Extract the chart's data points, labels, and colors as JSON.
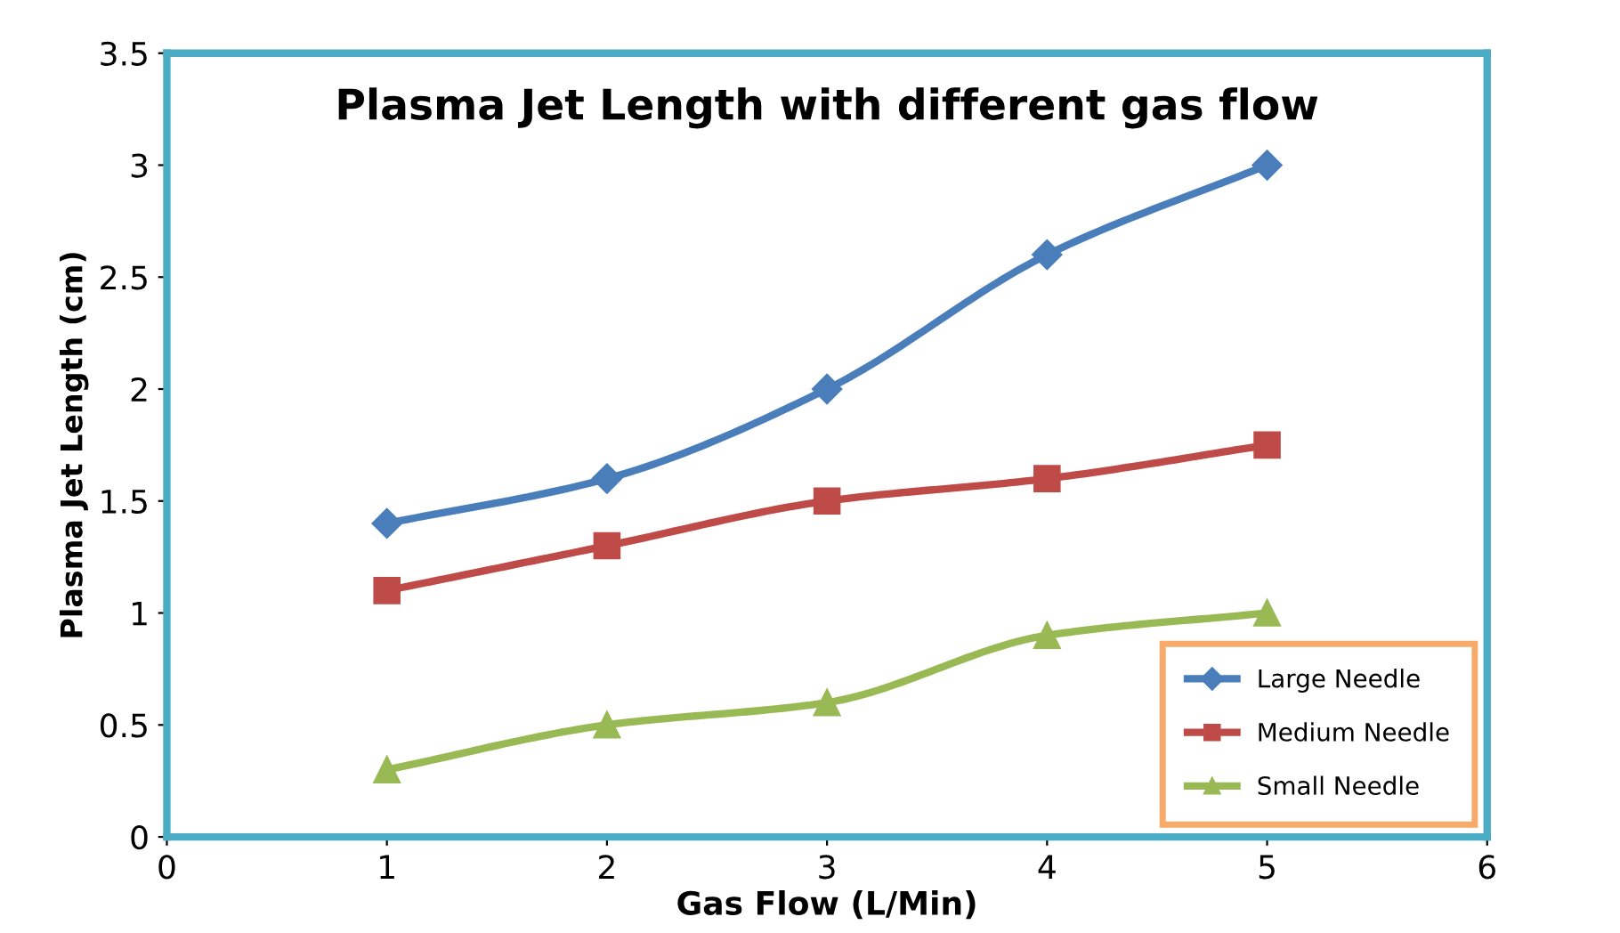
{
  "chart_data": {
    "type": "line",
    "title": "Plasma Jet Length with different gas flow",
    "xlabel": "Gas Flow (L/Min)",
    "ylabel": "Plasma Jet Length (cm)",
    "x": [
      1,
      2,
      3,
      4,
      5
    ],
    "series": [
      {
        "name": "Large Needle",
        "color": "#4a7ebb",
        "marker": "diamond",
        "values": [
          1.4,
          1.6,
          2.0,
          2.6,
          3.0
        ]
      },
      {
        "name": "Medium Needle",
        "color": "#be4b48",
        "marker": "square",
        "values": [
          1.1,
          1.3,
          1.5,
          1.6,
          1.75
        ]
      },
      {
        "name": "Small Needle",
        "color": "#98b954",
        "marker": "triangle",
        "values": [
          0.3,
          0.5,
          0.6,
          0.9,
          1.0
        ]
      }
    ],
    "xlim": [
      0,
      6
    ],
    "xticks": [
      0,
      1,
      2,
      3,
      4,
      5,
      6
    ],
    "ylim": [
      0,
      3.5
    ],
    "yticks": [
      0,
      0.5,
      1,
      1.5,
      2,
      2.5,
      3,
      3.5
    ],
    "grid": false,
    "legend": "bottom right",
    "line_style": "solid"
  }
}
